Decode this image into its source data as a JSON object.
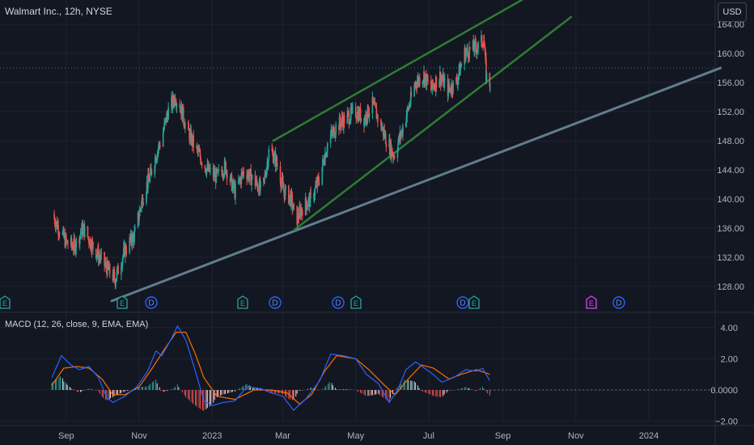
{
  "header": {
    "title": "Walmart Inc., 12h, NYSE",
    "currency_button": "USD"
  },
  "macd": {
    "title": "MACD (12, 26, close, 9, EMA, EMA)"
  },
  "colors": {
    "background": "#131722",
    "up": "#26a69a",
    "down": "#ef5350",
    "grid": "#1f2330",
    "axis_text": "#b2b5be",
    "channel": "#2e7d32",
    "trendline": "#607d8b",
    "macd_line": "#2962ff",
    "signal_line": "#ff6d00"
  },
  "price_axis": {
    "labels": [
      "164.00",
      "160.00",
      "156.00",
      "152.00",
      "148.00",
      "144.00",
      "140.00",
      "136.00",
      "132.00",
      "128.00"
    ]
  },
  "macd_axis": {
    "labels": [
      "4.00",
      "2.00",
      "0.0000",
      "−2.00"
    ]
  },
  "time_axis": {
    "labels": [
      "Sep",
      "Nov",
      "2023",
      "Mar",
      "May",
      "Jul",
      "Sep",
      "Nov",
      "2024"
    ]
  },
  "event_markers": [
    {
      "type": "earnings",
      "label": "E"
    },
    {
      "type": "earnings",
      "label": "E"
    },
    {
      "type": "dividend",
      "label": "D"
    },
    {
      "type": "earnings",
      "label": "E"
    },
    {
      "type": "dividend",
      "label": "D"
    },
    {
      "type": "dividend",
      "label": "D"
    },
    {
      "type": "earnings",
      "label": "E"
    },
    {
      "type": "dividend",
      "label": "D"
    },
    {
      "type": "earnings",
      "label": "E"
    },
    {
      "type": "earnings-upcoming",
      "label": "E"
    },
    {
      "type": "dividend",
      "label": "D"
    }
  ],
  "chart_data": {
    "type": "candlestick",
    "symbol": "Walmart Inc., 12h, NYSE",
    "currency": "USD",
    "ylim": [
      126,
      165
    ],
    "x_range": [
      "2022-08-20",
      "2024-03-01"
    ],
    "last_price": 155.5,
    "price_anchors": [
      [
        "2022-08-20",
        138
      ],
      [
        "2022-09-01",
        134
      ],
      [
        "2022-09-08",
        133.5
      ],
      [
        "2022-09-15",
        136
      ],
      [
        "2022-09-25",
        133
      ],
      [
        "2022-10-05",
        130.5
      ],
      [
        "2022-10-12",
        129
      ],
      [
        "2022-10-20",
        133
      ],
      [
        "2022-10-28",
        135
      ],
      [
        "2022-11-05",
        141
      ],
      [
        "2022-11-10",
        143
      ],
      [
        "2022-11-15",
        146
      ],
      [
        "2022-11-20",
        148.5
      ],
      [
        "2022-11-25",
        152
      ],
      [
        "2022-12-01",
        154
      ],
      [
        "2022-12-05",
        153
      ],
      [
        "2022-12-10",
        150
      ],
      [
        "2022-12-18",
        147
      ],
      [
        "2022-12-28",
        144
      ],
      [
        "2023-01-05",
        143
      ],
      [
        "2023-01-12",
        144.5
      ],
      [
        "2023-01-20",
        141
      ],
      [
        "2023-01-28",
        144
      ],
      [
        "2023-02-05",
        142.5
      ],
      [
        "2023-02-12",
        141
      ],
      [
        "2023-02-18",
        147
      ],
      [
        "2023-02-24",
        145
      ],
      [
        "2023-03-02",
        141
      ],
      [
        "2023-03-08",
        140
      ],
      [
        "2023-03-12",
        137
      ],
      [
        "2023-03-18",
        139
      ],
      [
        "2023-03-25",
        140
      ],
      [
        "2023-04-01",
        143
      ],
      [
        "2023-04-08",
        148
      ],
      [
        "2023-04-15",
        150
      ],
      [
        "2023-04-22",
        151
      ],
      [
        "2023-05-01",
        152
      ],
      [
        "2023-05-08",
        151
      ],
      [
        "2023-05-15",
        153
      ],
      [
        "2023-05-20",
        151
      ],
      [
        "2023-05-27",
        148
      ],
      [
        "2023-06-02",
        146
      ],
      [
        "2023-06-08",
        149
      ],
      [
        "2023-06-15",
        153
      ],
      [
        "2023-06-20",
        156
      ],
      [
        "2023-06-27",
        157
      ],
      [
        "2023-07-03",
        155
      ],
      [
        "2023-07-10",
        157
      ],
      [
        "2023-07-17",
        155
      ],
      [
        "2023-07-24",
        156
      ],
      [
        "2023-07-31",
        160
      ],
      [
        "2023-08-05",
        160.5
      ],
      [
        "2023-08-12",
        161
      ],
      [
        "2023-08-16",
        162
      ],
      [
        "2023-08-18",
        157
      ],
      [
        "2023-08-21",
        155.5
      ]
    ],
    "channel_upper": [
      [
        "2023-02-21",
        148
      ],
      [
        "2023-10-24",
        170.8
      ]
    ],
    "channel_lower": [
      [
        "2023-03-11",
        135.8
      ],
      [
        "2023-10-28",
        165
      ]
    ],
    "long_trendline": [
      [
        "2022-10-09",
        126
      ],
      [
        "2024-03-01",
        158
      ]
    ],
    "macd_line": [
      [
        "2022-08-20",
        0.8
      ],
      [
        "2022-08-28",
        2.2
      ],
      [
        "2022-09-05",
        1.6
      ],
      [
        "2022-09-12",
        1.3
      ],
      [
        "2022-09-20",
        1.5
      ],
      [
        "2022-09-28",
        0.8
      ],
      [
        "2022-10-05",
        -0.5
      ],
      [
        "2022-10-10",
        -0.8
      ],
      [
        "2022-10-20",
        -0.4
      ],
      [
        "2022-10-30",
        0.2
      ],
      [
        "2022-11-08",
        1.2
      ],
      [
        "2022-11-15",
        2.5
      ],
      [
        "2022-11-20",
        2.2
      ],
      [
        "2022-11-28",
        3.3
      ],
      [
        "2022-12-03",
        4.1
      ],
      [
        "2022-12-10",
        3.2
      ],
      [
        "2022-12-18",
        1.2
      ],
      [
        "2022-12-25",
        -0.7
      ],
      [
        "2023-01-01",
        -1.0
      ],
      [
        "2023-01-10",
        -0.8
      ],
      [
        "2023-01-20",
        -0.7
      ],
      [
        "2023-01-30",
        0.2
      ],
      [
        "2023-02-10",
        0.1
      ],
      [
        "2023-02-20",
        -0.2
      ],
      [
        "2023-03-01",
        -0.4
      ],
      [
        "2023-03-10",
        -1.3
      ],
      [
        "2023-03-20",
        -0.6
      ],
      [
        "2023-04-01",
        0.6
      ],
      [
        "2023-04-10",
        2.3
      ],
      [
        "2023-04-20",
        2.2
      ],
      [
        "2023-05-01",
        2.0
      ],
      [
        "2023-05-10",
        1.0
      ],
      [
        "2023-05-20",
        0.4
      ],
      [
        "2023-05-29",
        -0.8
      ],
      [
        "2023-06-05",
        0.0
      ],
      [
        "2023-06-12",
        1.3
      ],
      [
        "2023-06-20",
        1.8
      ],
      [
        "2023-07-03",
        1.1
      ],
      [
        "2023-07-12",
        0.5
      ],
      [
        "2023-07-22",
        0.8
      ],
      [
        "2023-08-01",
        1.3
      ],
      [
        "2023-08-10",
        1.2
      ],
      [
        "2023-08-15",
        1.4
      ],
      [
        "2023-08-21",
        0.6
      ]
    ],
    "signal_line": [
      [
        "2022-08-20",
        0.3
      ],
      [
        "2022-08-30",
        1.4
      ],
      [
        "2022-09-10",
        1.5
      ],
      [
        "2022-09-20",
        1.4
      ],
      [
        "2022-10-01",
        0.7
      ],
      [
        "2022-10-10",
        -0.3
      ],
      [
        "2022-10-20",
        -0.3
      ],
      [
        "2022-11-01",
        0.2
      ],
      [
        "2022-11-12",
        1.4
      ],
      [
        "2022-11-22",
        2.6
      ],
      [
        "2022-12-02",
        3.7
      ],
      [
        "2022-12-10",
        3.7
      ],
      [
        "2022-12-18",
        2.3
      ],
      [
        "2022-12-25",
        0.8
      ],
      [
        "2023-01-05",
        -0.4
      ],
      [
        "2023-01-20",
        -0.6
      ],
      [
        "2023-02-05",
        0.0
      ],
      [
        "2023-02-20",
        0.0
      ],
      [
        "2023-03-05",
        -0.2
      ],
      [
        "2023-03-15",
        -0.9
      ],
      [
        "2023-03-25",
        -0.3
      ],
      [
        "2023-04-05",
        1.2
      ],
      [
        "2023-04-15",
        2.2
      ],
      [
        "2023-05-01",
        2.0
      ],
      [
        "2023-05-12",
        1.3
      ],
      [
        "2023-05-25",
        0.3
      ],
      [
        "2023-06-03",
        -0.3
      ],
      [
        "2023-06-15",
        0.8
      ],
      [
        "2023-06-25",
        1.6
      ],
      [
        "2023-07-05",
        1.4
      ],
      [
        "2023-07-18",
        0.7
      ],
      [
        "2023-07-28",
        1.0
      ],
      [
        "2023-08-10",
        1.3
      ],
      [
        "2023-08-21",
        1.0
      ]
    ],
    "macd_ylim": [
      -2.2,
      4.4
    ]
  }
}
